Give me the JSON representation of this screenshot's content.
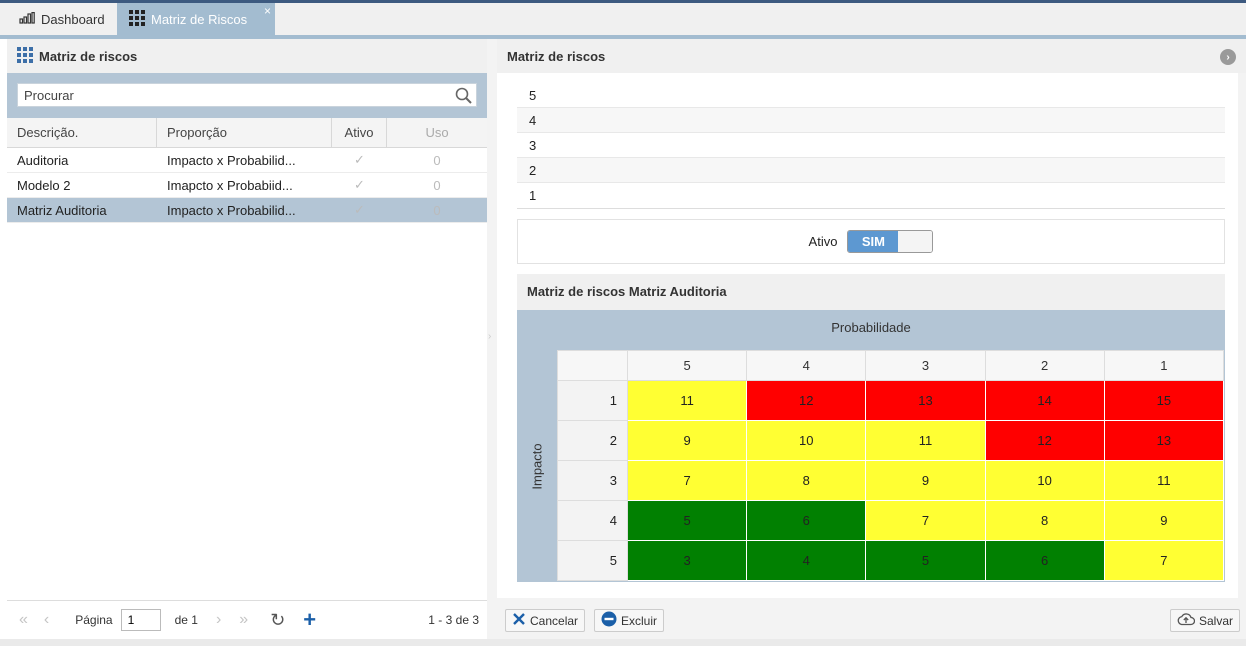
{
  "tabs": [
    {
      "label": "Dashboard",
      "icon": "bar-chart-icon",
      "active": false
    },
    {
      "label": "Matriz de Riscos",
      "icon": "grid-icon",
      "active": true,
      "close": "×"
    }
  ],
  "left": {
    "title": "Matriz de riscos",
    "search": {
      "placeholder": "Procurar",
      "value": ""
    },
    "columns": [
      "Descrição.",
      "Proporção",
      "Ativo",
      "Uso"
    ],
    "rows": [
      {
        "descricao": "Auditoria",
        "proporcao": "Impacto x Probabilid...",
        "ativo": "✓",
        "uso": "0"
      },
      {
        "descricao": "Modelo 2",
        "proporcao": "Imapcto x Probabiid...",
        "ativo": "✓",
        "uso": "0"
      },
      {
        "descricao": "Matriz Auditoria",
        "proporcao": "Impacto x Probabilid...",
        "ativo": "✓",
        "uso": "0",
        "selected": true
      }
    ],
    "pager": {
      "first": "«",
      "prev": "‹",
      "page_label": "Página",
      "page": "1",
      "of": "de 1",
      "next": "›",
      "last": "»",
      "refresh": "↻",
      "add": "+",
      "range": "1 - 3 de 3"
    }
  },
  "right": {
    "title": "Matriz de riscos",
    "collapse": "›",
    "levels": [
      "5",
      "4",
      "3",
      "2",
      "1"
    ],
    "ativo": {
      "label": "Ativo",
      "toggle_on": "SIM"
    },
    "matrix": {
      "title": "Matriz de riscos Matriz Auditoria",
      "x_label": "Probabilidade",
      "y_label": "Impacto",
      "columns": [
        "5",
        "4",
        "3",
        "2",
        "1"
      ],
      "rows": [
        {
          "label": "1",
          "cells": [
            {
              "v": "11",
              "c": "yellow"
            },
            {
              "v": "12",
              "c": "red"
            },
            {
              "v": "13",
              "c": "red"
            },
            {
              "v": "14",
              "c": "red"
            },
            {
              "v": "15",
              "c": "red"
            }
          ]
        },
        {
          "label": "2",
          "cells": [
            {
              "v": "9",
              "c": "yellow"
            },
            {
              "v": "10",
              "c": "yellow"
            },
            {
              "v": "11",
              "c": "yellow"
            },
            {
              "v": "12",
              "c": "red"
            },
            {
              "v": "13",
              "c": "red"
            }
          ]
        },
        {
          "label": "3",
          "cells": [
            {
              "v": "7",
              "c": "yellow"
            },
            {
              "v": "8",
              "c": "yellow"
            },
            {
              "v": "9",
              "c": "yellow"
            },
            {
              "v": "10",
              "c": "yellow"
            },
            {
              "v": "11",
              "c": "yellow"
            }
          ]
        },
        {
          "label": "4",
          "cells": [
            {
              "v": "5",
              "c": "green"
            },
            {
              "v": "6",
              "c": "green"
            },
            {
              "v": "7",
              "c": "yellow"
            },
            {
              "v": "8",
              "c": "yellow"
            },
            {
              "v": "9",
              "c": "yellow"
            }
          ]
        },
        {
          "label": "5",
          "cells": [
            {
              "v": "3",
              "c": "green"
            },
            {
              "v": "4",
              "c": "green"
            },
            {
              "v": "5",
              "c": "green"
            },
            {
              "v": "6",
              "c": "green"
            },
            {
              "v": "7",
              "c": "yellow"
            }
          ]
        }
      ]
    },
    "buttons": {
      "cancel": "Cancelar",
      "delete": "Excluir",
      "save": "Salvar"
    }
  },
  "colors": {
    "accent": "#a3bcd0",
    "selection": "#b3c5d5",
    "yellow": "#ffff33",
    "red": "#ff0000",
    "green": "#018001",
    "toggle": "#5d98d1"
  }
}
